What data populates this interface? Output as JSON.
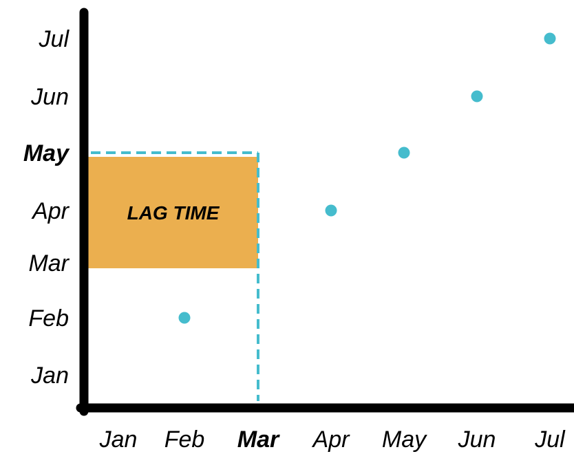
{
  "chart_data": {
    "type": "scatter",
    "title": "",
    "xlabel": "",
    "ylabel": "",
    "x_categories": [
      "Jan",
      "Feb",
      "Mar",
      "Apr",
      "May",
      "Jun",
      "Jul"
    ],
    "y_categories": [
      "Jan",
      "Feb",
      "Mar",
      "Apr",
      "May",
      "Jun",
      "Jul"
    ],
    "highlight": {
      "x": "Mar",
      "y": "May"
    },
    "points": [
      {
        "x": "Feb",
        "y": "Feb"
      },
      {
        "x": "Apr",
        "y": "Apr"
      },
      {
        "x": "May",
        "y": "May"
      },
      {
        "x": "Jun",
        "y": "Jun"
      },
      {
        "x": "Jul",
        "y": "Jul"
      }
    ],
    "lag_region": {
      "label": "LAG TIME",
      "x_start": "Jan",
      "x_end": "Mar",
      "y_start": "Mar",
      "y_end": "May"
    },
    "grid": false,
    "legend": "none"
  },
  "colors": {
    "point": "#45BCCD",
    "highlight_text": "#45BCCD",
    "guide_line": "#45BCCD",
    "lag_fill": "#EBAF4F",
    "axis": "#000000",
    "text": "#000000"
  }
}
